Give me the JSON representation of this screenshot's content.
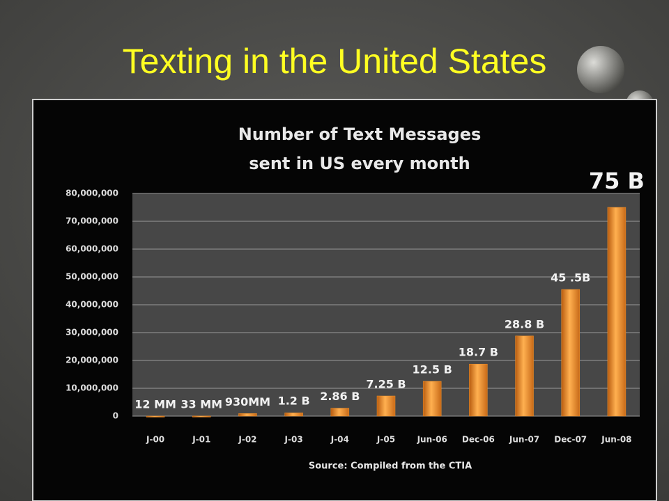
{
  "slide": {
    "title": "Texting in the United States"
  },
  "chart_data": {
    "type": "bar",
    "title_lines": [
      "Number of Text Messages",
      "sent in US every month"
    ],
    "source": "Source: Compiled from the CTIA",
    "categories": [
      "J-00",
      "J-01",
      "J-02",
      "J-03",
      "J-04",
      "J-05",
      "Jun-06",
      "Dec-06",
      "Jun-07",
      "Dec-07",
      "Jun-08"
    ],
    "values": [
      12000,
      33000,
      930000,
      1200000,
      2860000,
      7250000,
      12500000,
      18700000,
      28800000,
      45500000,
      75000000
    ],
    "value_labels": [
      "12 MM",
      "33 MM",
      "930MM",
      "1.2 B",
      "2.86 B",
      "7.25 B",
      "12.5 B",
      "18.7 B",
      "28.8 B",
      "45 .5B",
      "75 B"
    ],
    "color": "#f0922a",
    "ylim": [
      0,
      80000000
    ],
    "yticks": [
      0,
      {
        "value": 10000000,
        "label": "10,000,000"
      },
      {
        "value": 20000000,
        "label": "20,000,000"
      },
      {
        "value": 30000000,
        "label": "30,000,000"
      },
      {
        "value": 40000000,
        "label": "40,000,000"
      },
      {
        "value": 50000000,
        "label": "50,000,000"
      },
      {
        "value": 60000000,
        "label": "60,000,000"
      },
      {
        "value": 70000000,
        "label": "70,000,000"
      },
      {
        "value": 80000000,
        "label": "80,000,000"
      }
    ],
    "grid": true
  }
}
